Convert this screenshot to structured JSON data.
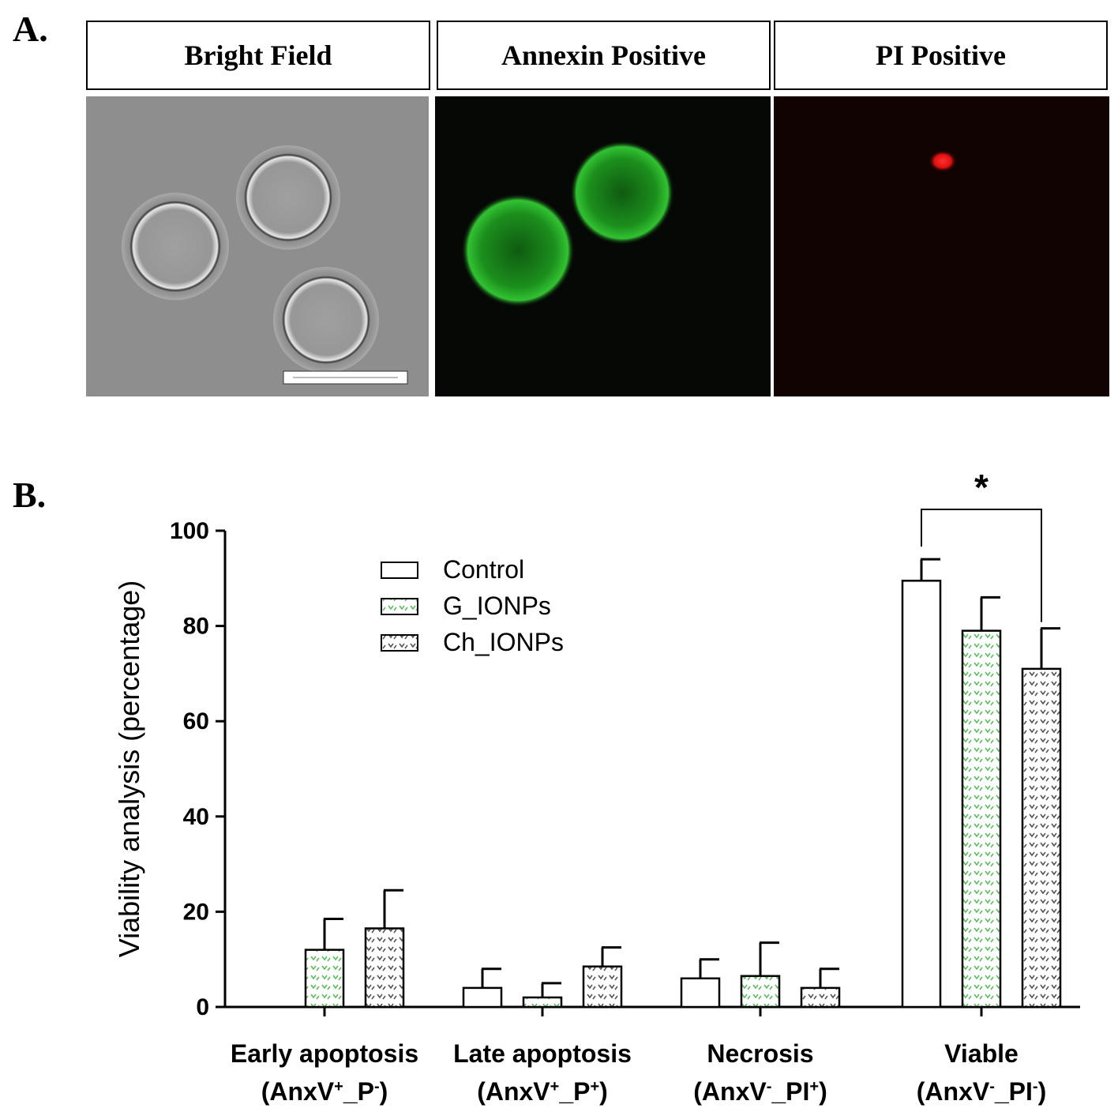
{
  "panel_a": {
    "letter": "A.",
    "headers": [
      {
        "label": "Bright Field",
        "bg": "#eeeeee",
        "color": "#000000"
      },
      {
        "label": "Annexin Positive",
        "bg": "#a8d08d",
        "color": "#000000"
      },
      {
        "label": "PI Positive",
        "bg": "#ff0000",
        "color": "#000000"
      }
    ]
  },
  "panel_b": {
    "letter": "B.",
    "significance_mark": "*"
  },
  "chart_data": {
    "type": "bar",
    "title": "",
    "ylabel": "Viability analysis (percentage)",
    "xlabel": "",
    "ylim": [
      0,
      100
    ],
    "yticks": [
      0,
      20,
      40,
      60,
      80,
      100
    ],
    "categories": [
      {
        "line1": "Early apoptosis",
        "line2_base": "(AnxV",
        "sup1": "+",
        "mid": "_P",
        "sup2": "-",
        "end": ")"
      },
      {
        "line1": "Late apoptosis",
        "line2_base": "(AnxV",
        "sup1": "+",
        "mid": "_P",
        "sup2": "+",
        "end": ")"
      },
      {
        "line1": "Necrosis",
        "line2_base": "(AnxV",
        "sup1": "-",
        "mid": "_PI",
        "sup2": "+",
        "end": ")"
      },
      {
        "line1": "Viable",
        "line2_base": "(AnxV",
        "sup1": "-",
        "mid": "_PI",
        "sup2": "-",
        "end": ")"
      }
    ],
    "series": [
      {
        "name": "Control",
        "pattern": "white",
        "values": [
          0,
          4,
          6,
          89.5
        ],
        "errors": [
          0,
          4,
          4,
          4.5
        ]
      },
      {
        "name": "G_IONPs",
        "pattern": "green-dots",
        "values": [
          12,
          2,
          6.5,
          79
        ],
        "errors": [
          6.5,
          3,
          7,
          7
        ]
      },
      {
        "name": "Ch_IONPs",
        "pattern": "gray-dots",
        "values": [
          16.5,
          8.5,
          4,
          71
        ],
        "errors": [
          8,
          4,
          4,
          8.5
        ]
      }
    ],
    "significance": {
      "category": "Viable",
      "from_series": "Control",
      "to_series": "Ch_IONPs",
      "label": "*"
    },
    "legend_position": "top-left",
    "grid": false
  }
}
